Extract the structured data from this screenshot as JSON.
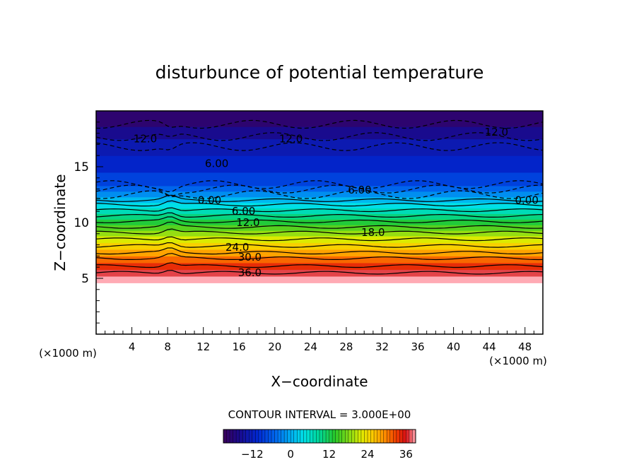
{
  "chart_data": {
    "type": "heatmap",
    "title": "disturbunce of potential temperature",
    "xlabel": "X−coordinate",
    "ylabel": "Z−coordinate",
    "x_unit_left": "(×1000 m)",
    "x_unit_right": "(×1000 m)",
    "xlim": [
      0,
      50
    ],
    "ylim": [
      0,
      20
    ],
    "x_ticks": [
      4,
      8,
      12,
      16,
      20,
      24,
      28,
      32,
      36,
      40,
      44,
      48
    ],
    "y_ticks": [
      5,
      10,
      15
    ],
    "contour_interval_text": "CONTOUR INTERVAL = 3.000E+00",
    "contour_interval": 3.0,
    "colorbar": {
      "range": [
        -21,
        39
      ],
      "ticks": [
        -12,
        0,
        12,
        24,
        36
      ],
      "tick_labels": [
        "−12",
        "0",
        "12",
        "24",
        "36"
      ]
    },
    "terrain_top_z": 4.6,
    "contour_labels": [
      {
        "text": "12.0",
        "x": 5.5,
        "z": 17.5
      },
      {
        "text": "12.0",
        "x": 21.8,
        "z": 17.5
      },
      {
        "text": "12.0",
        "x": 44.8,
        "z": 18.1
      },
      {
        "text": "6.00",
        "x": 13.5,
        "z": 15.3
      },
      {
        "text": "6.00",
        "x": 29.5,
        "z": 12.9
      },
      {
        "text": "0.00",
        "x": 12.7,
        "z": 12.0
      },
      {
        "text": "0.00",
        "x": 48.2,
        "z": 12.0
      },
      {
        "text": "6.00",
        "x": 16.5,
        "z": 11.0
      },
      {
        "text": "12.0",
        "x": 17.0,
        "z": 10.0
      },
      {
        "text": "18.0",
        "x": 31.0,
        "z": 9.1
      },
      {
        "text": "24.0",
        "x": 15.8,
        "z": 7.8
      },
      {
        "text": "30.0",
        "x": 17.2,
        "z": 6.9
      },
      {
        "text": "36.0",
        "x": 17.2,
        "z": 5.5
      }
    ],
    "contour_levels": [
      {
        "value": 36,
        "z": 5.5,
        "style": "solid"
      },
      {
        "value": 33,
        "z": 6.1,
        "style": "solid"
      },
      {
        "value": 30,
        "z": 6.8,
        "style": "solid"
      },
      {
        "value": 27,
        "z": 7.3,
        "style": "solid"
      },
      {
        "value": 24,
        "z": 7.9,
        "style": "solid"
      },
      {
        "value": 21,
        "z": 8.5,
        "style": "solid"
      },
      {
        "value": 18,
        "z": 9.1,
        "style": "solid"
      },
      {
        "value": 15,
        "z": 9.6,
        "style": "solid"
      },
      {
        "value": 12,
        "z": 10.1,
        "style": "solid"
      },
      {
        "value": 9,
        "z": 10.6,
        "style": "solid"
      },
      {
        "value": 6,
        "z": 11.1,
        "style": "solid"
      },
      {
        "value": 3,
        "z": 11.6,
        "style": "solid"
      },
      {
        "value": 0,
        "z": 12.0,
        "style": "solid"
      },
      {
        "value": -3,
        "z": 12.5,
        "style": "dashed"
      },
      {
        "value": -6,
        "z": 13.0,
        "style": "dashed"
      },
      {
        "value": -9,
        "z": 13.4,
        "style": "dashed"
      },
      {
        "value": -12,
        "z": 16.8,
        "style": "dashed"
      },
      {
        "value": -12,
        "z": 17.7,
        "style": "dashed"
      },
      {
        "value": -15,
        "z": 18.8,
        "style": "dashed"
      }
    ],
    "field_bands": [
      {
        "z0": 4.6,
        "z1": 5.2,
        "value": 39
      },
      {
        "z0": 5.2,
        "z1": 5.8,
        "value": 37
      },
      {
        "z0": 5.8,
        "z1": 6.4,
        "value": 34
      },
      {
        "z0": 6.4,
        "z1": 7.0,
        "value": 31
      },
      {
        "z0": 7.0,
        "z1": 7.6,
        "value": 28
      },
      {
        "z0": 7.6,
        "z1": 8.2,
        "value": 25
      },
      {
        "z0": 8.2,
        "z1": 8.8,
        "value": 22
      },
      {
        "z0": 8.8,
        "z1": 9.3,
        "value": 19
      },
      {
        "z0": 9.3,
        "z1": 9.8,
        "value": 16
      },
      {
        "z0": 9.8,
        "z1": 10.3,
        "value": 13
      },
      {
        "z0": 10.3,
        "z1": 10.8,
        "value": 10
      },
      {
        "z0": 10.8,
        "z1": 11.3,
        "value": 7
      },
      {
        "z0": 11.3,
        "z1": 11.8,
        "value": 4
      },
      {
        "z0": 11.8,
        "z1": 12.3,
        "value": 1
      },
      {
        "z0": 12.3,
        "z1": 12.8,
        "value": -2
      },
      {
        "z0": 12.8,
        "z1": 13.3,
        "value": -5
      },
      {
        "z0": 13.3,
        "z1": 14.5,
        "value": -8
      },
      {
        "z0": 14.5,
        "z1": 16.0,
        "value": -11
      },
      {
        "z0": 16.0,
        "z1": 17.5,
        "value": -13
      },
      {
        "z0": 17.5,
        "z1": 18.6,
        "value": -16
      },
      {
        "z0": 18.6,
        "z1": 20.0,
        "value": -19
      }
    ]
  }
}
